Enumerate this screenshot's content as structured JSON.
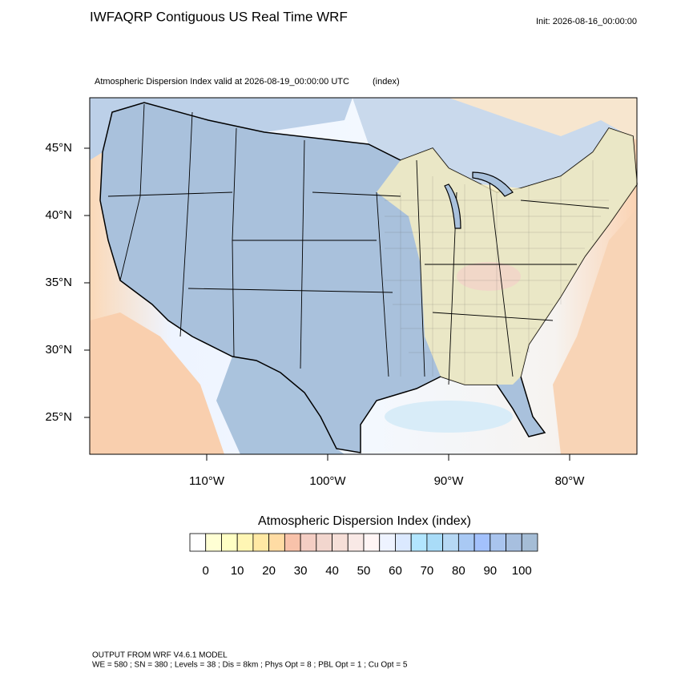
{
  "header": {
    "title": "IWFAQRP Contiguous US Real Time WRF",
    "init": "Init: 2026-08-16_00:00:00"
  },
  "map": {
    "subtitle": "Atmospheric Dispersion Index valid at 2026-08-19_00:00:00 UTC",
    "units": "(index)",
    "lat_labels": [
      "45°N",
      "40°N",
      "35°N",
      "30°N",
      "25°N"
    ],
    "lon_labels": [
      "110°W",
      "100°W",
      "90°W",
      "80°W"
    ]
  },
  "colorbar": {
    "title": "Atmospheric Dispersion Index  (index)",
    "ticks": [
      0,
      10,
      20,
      30,
      40,
      50,
      60,
      70,
      80,
      90,
      100
    ],
    "colors": [
      "#ffffff",
      "#ffffd4",
      "#ffffc4",
      "#fff6b4",
      "#ffe9a4",
      "#ffdca4",
      "#f8c2aa",
      "#f4cec4",
      "#f2d6ce",
      "#f6dfd8",
      "#f9e9e6",
      "#fff5f5",
      "#eef3ff",
      "#dbe9ff",
      "#b2e6ff",
      "#a9dcf8",
      "#b6d8f4",
      "#a9c9f4",
      "#a3c1fc",
      "#a9c4ee",
      "#a7bfdf",
      "#a5bdd6"
    ]
  },
  "footer": {
    "line1": "OUTPUT FROM WRF V4.6.1 MODEL",
    "line2": "WE = 580 ; SN = 380 ; Levels = 38 ; Dis = 8km ; Phys Opt = 8 ; PBL Opt = 1 ; Cu Opt = 5"
  }
}
